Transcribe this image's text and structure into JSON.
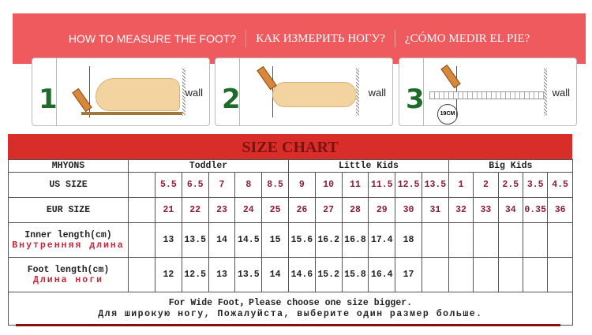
{
  "banner": {
    "en": "HOW TO MEASURE THE FOOT?",
    "ru": "КАК ИЗМЕРИТЬ НОГУ?",
    "es": "¿CÓMO MEDIR EL PIE?"
  },
  "steps": [
    {
      "number": "1",
      "wall": "wall"
    },
    {
      "number": "2",
      "wall": "wall"
    },
    {
      "number": "3",
      "wall": "wall",
      "measure": "19CM"
    }
  ],
  "chart": {
    "title": "SIZE CHART",
    "brand": "MHYONS",
    "groups": [
      {
        "label": "Toddler",
        "span": 5
      },
      {
        "label": "Little Kids",
        "span": 6
      },
      {
        "label": "Big Kids",
        "span": 5
      }
    ],
    "rows": [
      {
        "label": "US SIZE",
        "label_ru": "",
        "colored": true,
        "values": [
          "5.5",
          "6.5",
          "7",
          "8",
          "8.5",
          "9",
          "10",
          "11",
          "11.5",
          "12.5",
          "13.5",
          "1",
          "2",
          "2.5",
          "3.5",
          "4.5"
        ]
      },
      {
        "label": "EUR SIZE",
        "label_ru": "",
        "colored": true,
        "values": [
          "21",
          "22",
          "23",
          "24",
          "25",
          "26",
          "27",
          "28",
          "29",
          "30",
          "31",
          "32",
          "33",
          "34",
          "0.35",
          "36"
        ]
      },
      {
        "label": "Inner length(cm)",
        "label_ru": "Внутренняя длина",
        "colored": false,
        "values": [
          "13",
          "13.5",
          "14",
          "14.5",
          "15",
          "15.6",
          "16.2",
          "16.8",
          "17.4",
          "18",
          "",
          "",
          "",
          "",
          "",
          ""
        ]
      },
      {
        "label": "Foot length(cm)",
        "label_ru": "Длина ноги",
        "colored": false,
        "values": [
          "12",
          "12.5",
          "13",
          "13.5",
          "14",
          "14.6",
          "15.2",
          "15.8",
          "16.4",
          "17",
          "",
          "",
          "",
          "",
          "",
          ""
        ]
      }
    ],
    "note_en": "For Wide Foot，Please choose one size bigger.",
    "note_ru": "Для широкую ногу, Пожалуйста, выберите один размер больше."
  }
}
